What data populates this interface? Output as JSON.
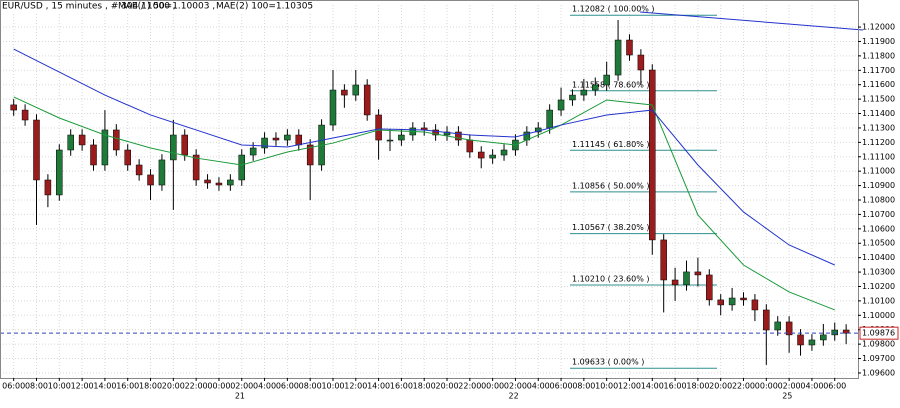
{
  "chart_data": {
    "type": "candlestick",
    "title": "EUR/USD , 15 minutes , # 304 / 1000 ,",
    "up_color": "#1f7a3a",
    "down_color": "#9b1c1c",
    "wick_color": "#000000",
    "x": [
      0,
      1,
      2,
      3,
      4,
      5,
      6,
      7,
      8,
      9,
      10,
      11,
      12,
      13,
      14,
      15,
      16,
      17,
      18,
      19,
      20,
      21,
      22,
      23,
      24,
      25,
      26,
      27,
      28,
      29,
      30,
      31,
      32,
      33,
      34,
      35,
      36,
      37,
      38,
      39,
      40,
      41,
      42,
      43,
      44,
      45,
      46,
      47,
      48,
      49,
      50,
      51,
      52,
      53,
      54,
      55,
      56,
      57,
      58,
      59,
      60,
      61,
      62,
      63,
      64,
      65,
      66,
      67,
      68,
      69,
      70,
      71,
      72,
      73
    ],
    "open": [
      1.1146,
      1.11424,
      1.11355,
      1.10939,
      1.10835,
      1.11147,
      1.11251,
      1.11182,
      1.11043,
      1.11286,
      1.11147,
      1.11043,
      1.10974,
      1.10904,
      1.11078,
      1.11251,
      1.11112,
      1.10939,
      1.10918,
      1.10904,
      1.10939,
      1.11112,
      1.11161,
      1.1123,
      1.11216,
      1.11251,
      1.11182,
      1.11043,
      1.1132,
      1.11563,
      1.11528,
      1.11598,
      1.1139,
      1.11216,
      1.11216,
      1.11251,
      1.113,
      1.11286,
      1.11251,
      1.11272,
      1.11216,
      1.11133,
      1.11091,
      1.11112,
      1.11147,
      1.11216,
      1.11272,
      1.113,
      1.11424,
      1.11494,
      1.11528,
      1.11563,
      1.11598,
      1.11667,
      1.1191,
      1.11806,
      1.11702,
      1.10523,
      1.10245,
      1.10211,
      1.10301,
      1.1028,
      1.10107,
      1.10072,
      1.1012,
      1.10107,
      1.10037,
      1.09898,
      1.09954,
      1.09864,
      1.09794,
      1.09829,
      1.09864,
      1.09898
    ],
    "high": [
      1.115,
      1.11464,
      1.11395,
      1.10979,
      1.11187,
      1.11291,
      1.11291,
      1.11222,
      1.11424,
      1.11326,
      1.11187,
      1.11083,
      1.11014,
      1.11118,
      1.11355,
      1.11291,
      1.11152,
      1.10979,
      1.10958,
      1.10979,
      1.11152,
      1.11201,
      1.1127,
      1.1127,
      1.11291,
      1.11291,
      1.11222,
      1.1136,
      1.11702,
      1.11603,
      1.11702,
      1.11638,
      1.1143,
      1.1129,
      1.11291,
      1.1134,
      1.1134,
      1.11326,
      1.11312,
      1.11312,
      1.11256,
      1.11173,
      1.11152,
      1.11187,
      1.11256,
      1.11312,
      1.1134,
      1.11464,
      1.1158,
      1.11568,
      1.1164,
      1.1165,
      1.1176,
      1.12049,
      1.1195,
      1.11846,
      1.11742,
      1.10563,
      1.1033,
      1.1038,
      1.104,
      1.1032,
      1.10147,
      1.1019,
      1.1016,
      1.10147,
      1.10077,
      1.09994,
      1.09994,
      1.09904,
      1.09869,
      1.0994,
      1.0995,
      1.09938
    ],
    "low": [
      1.11384,
      1.11315,
      1.10627,
      1.1075,
      1.10795,
      1.11107,
      1.11142,
      1.11003,
      1.11003,
      1.11107,
      1.11003,
      1.10934,
      1.108,
      1.10864,
      1.10731,
      1.11072,
      1.10899,
      1.10878,
      1.10864,
      1.10864,
      1.10899,
      1.11072,
      1.11121,
      1.11176,
      1.11176,
      1.11142,
      1.108,
      1.11003,
      1.1128,
      1.1144,
      1.11488,
      1.1135,
      1.1108,
      1.1114,
      1.11176,
      1.11211,
      1.11246,
      1.11211,
      1.11211,
      1.11176,
      1.11093,
      1.1102,
      1.11051,
      1.11072,
      1.11107,
      1.11176,
      1.11232,
      1.1126,
      1.11384,
      1.11454,
      1.11488,
      1.11523,
      1.11558,
      1.11627,
      1.11766,
      1.116,
      1.1042,
      1.1002,
      1.101,
      1.10171,
      1.102,
      1.10067,
      1.1,
      1.10032,
      1.10067,
      1.0996,
      1.09656,
      1.09858,
      1.0974,
      1.0972,
      1.09754,
      1.09789,
      1.09824,
      1.098
    ],
    "close": [
      1.11424,
      1.11355,
      1.10939,
      1.10835,
      1.11147,
      1.11251,
      1.11182,
      1.11043,
      1.11286,
      1.11147,
      1.11043,
      1.10974,
      1.10904,
      1.11078,
      1.11251,
      1.11112,
      1.10939,
      1.10918,
      1.10904,
      1.10939,
      1.11112,
      1.11161,
      1.1123,
      1.11216,
      1.11251,
      1.11182,
      1.11043,
      1.1132,
      1.11563,
      1.11528,
      1.11598,
      1.1139,
      1.11216,
      1.11216,
      1.11251,
      1.113,
      1.11286,
      1.11251,
      1.11272,
      1.11216,
      1.11133,
      1.11091,
      1.11112,
      1.11147,
      1.11216,
      1.11272,
      1.113,
      1.11424,
      1.11494,
      1.11528,
      1.11563,
      1.11598,
      1.11667,
      1.1191,
      1.11806,
      1.11702,
      1.10523,
      1.10245,
      1.10211,
      1.10301,
      1.1028,
      1.10107,
      1.10072,
      1.1012,
      1.10107,
      1.10037,
      1.09898,
      1.09954,
      1.09864,
      1.09794,
      1.09829,
      1.09864,
      1.09898,
      1.09876
    ],
    "series": [
      {
        "name": "MAE(1) 50=1.10003 ,",
        "color": "#1a9a3a",
        "x": [
          0,
          4,
          8,
          12,
          16,
          20,
          24,
          28,
          32,
          36,
          40,
          44,
          48,
          52,
          56,
          60,
          64,
          68,
          72
        ],
        "values": [
          1.11515,
          1.11369,
          1.11251,
          1.11161,
          1.11091,
          1.11043,
          1.11133,
          1.11195,
          1.11286,
          1.11272,
          1.11216,
          1.11182,
          1.1132,
          1.11494,
          1.11459,
          1.10696,
          1.10349,
          1.10162,
          1.10037
        ]
      },
      {
        "name": "MAE(2) 100=1.10305",
        "color": "#2233cc",
        "x": [
          0,
          4,
          8,
          12,
          16,
          20,
          24,
          28,
          32,
          36,
          40,
          44,
          48,
          52,
          56,
          60,
          64,
          68,
          72
        ],
        "values": [
          1.11847,
          1.11688,
          1.11528,
          1.1139,
          1.11286,
          1.11182,
          1.11168,
          1.1123,
          1.11293,
          1.11286,
          1.11251,
          1.11237,
          1.1132,
          1.1139,
          1.11424,
          1.11043,
          1.10717,
          1.10488,
          1.10349
        ]
      }
    ],
    "fib_levels": [
      {
        "value": 1.12082,
        "label": "1.12082 ( 100.00% )"
      },
      {
        "value": 1.11558,
        "label": "1.11558 ( 78.60% )"
      },
      {
        "value": 1.11145,
        "label": "1.11145 ( 61.80% )"
      },
      {
        "value": 1.10856,
        "label": "1.10856 ( 50.00% )"
      },
      {
        "value": 1.10567,
        "label": "1.10567 ( 38.20% )"
      },
      {
        "value": 1.1021,
        "label": "1.10210 ( 23.60% )"
      },
      {
        "value": 1.09633,
        "label": "1.09633 ( 0.00% )"
      }
    ],
    "fib_color": "#2f8f8f",
    "current_price": 1.09876,
    "xlim": [
      -1.2,
      74.04
    ],
    "ylim": [
      1.09565,
      1.12153
    ],
    "xticks": [
      {
        "value": 0,
        "label": "06:00"
      },
      {
        "value": 2,
        "label": "08:00"
      },
      {
        "value": 4,
        "label": "10:00"
      },
      {
        "value": 6,
        "label": "12:00"
      },
      {
        "value": 8,
        "label": "14:00"
      },
      {
        "value": 10,
        "label": "16:00"
      },
      {
        "value": 12,
        "label": "18:00"
      },
      {
        "value": 14,
        "label": "20:00"
      },
      {
        "value": 16,
        "label": "22:00"
      },
      {
        "value": 18,
        "label": "00:00"
      },
      {
        "value": 20,
        "label": "02:00"
      },
      {
        "value": 22,
        "label": "04:00"
      },
      {
        "value": 24,
        "label": "06:00"
      },
      {
        "value": 26,
        "label": "08:00"
      },
      {
        "value": 28,
        "label": "10:00"
      },
      {
        "value": 30,
        "label": "12:00"
      },
      {
        "value": 32,
        "label": "14:00"
      },
      {
        "value": 34,
        "label": "16:00"
      },
      {
        "value": 36,
        "label": "18:00"
      },
      {
        "value": 38,
        "label": "20:00"
      },
      {
        "value": 40,
        "label": "22:00"
      },
      {
        "value": 42,
        "label": "00:00"
      },
      {
        "value": 44,
        "label": "02:00"
      },
      {
        "value": 46,
        "label": "04:00"
      },
      {
        "value": 48,
        "label": "06:00"
      },
      {
        "value": 50,
        "label": "08:00"
      },
      {
        "value": 52,
        "label": "10:00"
      },
      {
        "value": 54,
        "label": "12:00"
      },
      {
        "value": 56,
        "label": "14:00"
      },
      {
        "value": 58,
        "label": "16:00"
      },
      {
        "value": 60,
        "label": "18:00"
      },
      {
        "value": 62,
        "label": "20:00"
      },
      {
        "value": 64,
        "label": "22:00"
      },
      {
        "value": 66,
        "label": "00:00"
      },
      {
        "value": 68,
        "label": "02:00"
      },
      {
        "value": 70,
        "label": "04:00"
      },
      {
        "value": 72,
        "label": "06:00"
      }
    ],
    "xdates": [
      {
        "value": 18,
        "label": "21"
      },
      {
        "value": 42,
        "label": "22"
      },
      {
        "value": 66,
        "label": "25"
      }
    ],
    "yticks": [
      {
        "value": 1.096,
        "label": "1.09600"
      },
      {
        "value": 1.097,
        "label": "1.09700"
      },
      {
        "value": 1.098,
        "label": "1.09800"
      },
      {
        "value": 1.099,
        "label": "1.09900"
      },
      {
        "value": 1.1,
        "label": "1.10000"
      },
      {
        "value": 1.101,
        "label": "1.10100"
      },
      {
        "value": 1.102,
        "label": "1.10200"
      },
      {
        "value": 1.103,
        "label": "1.10300"
      },
      {
        "value": 1.104,
        "label": "1.10400"
      },
      {
        "value": 1.105,
        "label": "1.10500"
      },
      {
        "value": 1.106,
        "label": "1.10600"
      },
      {
        "value": 1.107,
        "label": "1.10700"
      },
      {
        "value": 1.108,
        "label": "1.10800"
      },
      {
        "value": 1.109,
        "label": "1.10900"
      },
      {
        "value": 1.11,
        "label": "1.11000"
      },
      {
        "value": 1.111,
        "label": "1.11100"
      },
      {
        "value": 1.112,
        "label": "1.11200"
      },
      {
        "value": 1.113,
        "label": "1.11300"
      },
      {
        "value": 1.114,
        "label": "1.11400"
      },
      {
        "value": 1.115,
        "label": "1.11500"
      },
      {
        "value": 1.116,
        "label": "1.11600"
      },
      {
        "value": 1.117,
        "label": "1.11700"
      },
      {
        "value": 1.118,
        "label": "1.11800"
      },
      {
        "value": 1.119,
        "label": "1.11900"
      },
      {
        "value": 1.12,
        "label": "1.12000"
      }
    ],
    "grid": true
  }
}
